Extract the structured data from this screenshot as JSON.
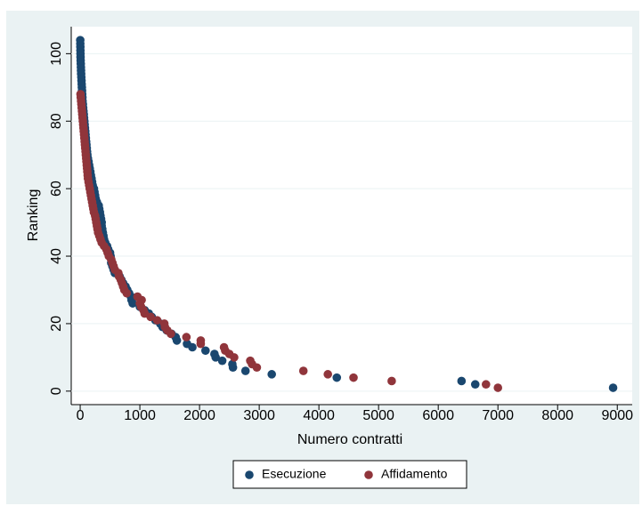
{
  "chart_data": {
    "type": "scatter",
    "x_label": "Numero contratti",
    "y_label": "Ranking",
    "xlim": [
      -150,
      9250
    ],
    "ylim": [
      -4,
      108
    ],
    "xticks": [
      0,
      1000,
      2000,
      3000,
      4000,
      5000,
      6000,
      7000,
      8000,
      9000
    ],
    "yticks": [
      0,
      20,
      40,
      60,
      80,
      100
    ],
    "grid": true,
    "legend": "bottom",
    "series": [
      {
        "name": "Esecuzione",
        "color": "#1a476f",
        "x": [
          8930,
          6620,
          6390,
          4300,
          3210,
          2770,
          2560,
          2550,
          2380,
          2270,
          2250,
          2100,
          1880,
          1790,
          1620,
          1600,
          1530,
          1450,
          1380,
          1340,
          1260,
          1200,
          1150,
          1080,
          1000,
          880,
          860,
          850,
          820,
          790,
          760,
          720,
          690,
          660,
          580,
          560,
          540,
          520,
          520,
          510,
          500,
          470,
          450,
          420,
          400,
          390,
          380,
          370,
          360,
          360,
          350,
          340,
          330,
          320,
          310,
          280,
          260,
          250,
          240,
          230,
          210,
          200,
          190,
          180,
          170,
          160,
          150,
          140,
          130,
          120,
          115,
          110,
          105,
          100,
          95,
          90,
          85,
          80,
          75,
          70,
          65,
          60,
          55,
          50,
          45,
          40,
          37,
          34,
          31,
          28,
          25,
          22,
          19,
          16,
          14,
          12,
          10,
          8,
          6,
          5,
          4,
          3,
          2,
          1
        ],
        "values": [
          1,
          2,
          3,
          4,
          5,
          6,
          7,
          8,
          9,
          10,
          11,
          12,
          13,
          14,
          15,
          16,
          17,
          18,
          19,
          20,
          21,
          22,
          23,
          24,
          25,
          26,
          27,
          28,
          29,
          30,
          31,
          32,
          33,
          34,
          35,
          36,
          37,
          38,
          39,
          40,
          41,
          42,
          43,
          44,
          45,
          46,
          47,
          48,
          49,
          50,
          51,
          52,
          53,
          54,
          55,
          56,
          57,
          58,
          59,
          60,
          61,
          62,
          63,
          64,
          65,
          66,
          67,
          68,
          69,
          70,
          71,
          72,
          73,
          74,
          75,
          76,
          77,
          78,
          79,
          80,
          81,
          82,
          83,
          84,
          85,
          86,
          87,
          88,
          89,
          90,
          91,
          92,
          93,
          94,
          95,
          96,
          97,
          98,
          99,
          100,
          101,
          102,
          103,
          104
        ]
      },
      {
        "name": "Affidamento",
        "color": "#90353b",
        "x": [
          7000,
          6800,
          5220,
          4580,
          4150,
          3740,
          2960,
          2880,
          2850,
          2580,
          2500,
          2430,
          2410,
          2020,
          2020,
          1780,
          1520,
          1460,
          1420,
          1410,
          1290,
          1180,
          1080,
          1060,
          1020,
          1000,
          1030,
          960,
          780,
          740,
          720,
          700,
          680,
          650,
          640,
          580,
          560,
          540,
          520,
          480,
          460,
          440,
          400,
          360,
          340,
          320,
          300,
          290,
          280,
          270,
          260,
          250,
          230,
          220,
          210,
          200,
          190,
          180,
          170,
          160,
          150,
          140,
          130,
          125,
          120,
          115,
          110,
          105,
          100,
          95,
          90,
          85,
          80,
          75,
          70,
          65,
          60,
          55,
          50,
          45,
          40,
          35,
          30,
          25,
          20,
          15,
          10,
          5
        ],
        "values": [
          1,
          2,
          3,
          4,
          5,
          6,
          7,
          8,
          9,
          10,
          11,
          12,
          13,
          14,
          15,
          16,
          17,
          18,
          19,
          20,
          21,
          22,
          23,
          24,
          25,
          26,
          27,
          28,
          29,
          30,
          31,
          32,
          33,
          34,
          35,
          36,
          37,
          38,
          39,
          40,
          41,
          42,
          43,
          44,
          45,
          46,
          47,
          48,
          49,
          50,
          51,
          52,
          53,
          54,
          55,
          56,
          57,
          58,
          59,
          60,
          61,
          62,
          63,
          64,
          65,
          66,
          67,
          68,
          69,
          70,
          71,
          72,
          73,
          74,
          75,
          76,
          77,
          78,
          79,
          80,
          81,
          82,
          83,
          84,
          85,
          86,
          87,
          88
        ]
      }
    ]
  }
}
